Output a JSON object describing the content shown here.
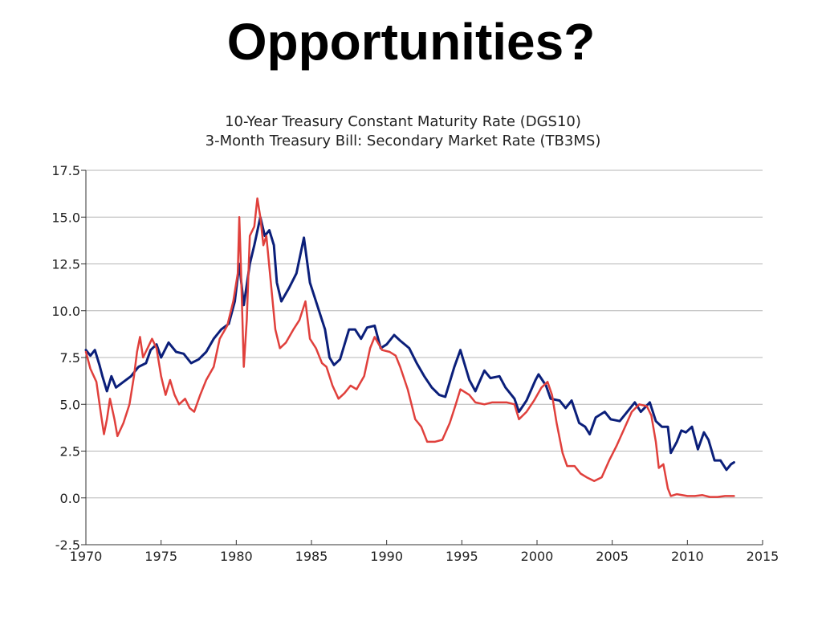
{
  "page_title": "Opportunities?",
  "chart_data": {
    "type": "line",
    "title_lines": [
      "10-Year Treasury Constant Maturity Rate (DGS10)",
      "3-Month Treasury Bill: Secondary Market Rate (TB3MS)"
    ],
    "xlabel": "",
    "ylabel": "",
    "xlim": [
      1970,
      2015
    ],
    "ylim": [
      -2.5,
      17.5
    ],
    "x_ticks": [
      1970,
      1975,
      1980,
      1985,
      1990,
      1995,
      2000,
      2005,
      2010,
      2015
    ],
    "x_tick_labels": [
      "1970",
      "1975",
      "1980",
      "1985",
      "1990",
      "1995",
      "2000",
      "2005",
      "2010",
      "2015"
    ],
    "y_ticks": [
      -2.5,
      0.0,
      2.5,
      5.0,
      7.5,
      10.0,
      12.5,
      15.0,
      17.5
    ],
    "y_tick_labels": [
      "-2.5",
      "0.0",
      "2.5",
      "5.0",
      "7.5",
      "10.0",
      "12.5",
      "15.0",
      "17.5"
    ],
    "grid": true,
    "legend": "none",
    "series": [
      {
        "color": "#0b1f7a",
        "points": [
          [
            1970.0,
            7.9
          ],
          [
            1970.3,
            7.6
          ],
          [
            1970.6,
            7.9
          ],
          [
            1970.9,
            7.1
          ],
          [
            1971.1,
            6.5
          ],
          [
            1971.4,
            5.7
          ],
          [
            1971.7,
            6.5
          ],
          [
            1972.0,
            5.9
          ],
          [
            1972.5,
            6.2
          ],
          [
            1973.0,
            6.5
          ],
          [
            1973.5,
            7.0
          ],
          [
            1974.0,
            7.2
          ],
          [
            1974.3,
            7.9
          ],
          [
            1974.7,
            8.2
          ],
          [
            1975.0,
            7.5
          ],
          [
            1975.5,
            8.3
          ],
          [
            1976.0,
            7.8
          ],
          [
            1976.5,
            7.7
          ],
          [
            1977.0,
            7.2
          ],
          [
            1977.5,
            7.4
          ],
          [
            1978.0,
            7.8
          ],
          [
            1978.5,
            8.5
          ],
          [
            1979.0,
            9.0
          ],
          [
            1979.5,
            9.3
          ],
          [
            1979.9,
            10.5
          ],
          [
            1980.2,
            12.5
          ],
          [
            1980.5,
            10.3
          ],
          [
            1980.9,
            12.5
          ],
          [
            1981.2,
            13.5
          ],
          [
            1981.6,
            15.0
          ],
          [
            1981.9,
            14.0
          ],
          [
            1982.2,
            14.3
          ],
          [
            1982.5,
            13.5
          ],
          [
            1982.7,
            11.5
          ],
          [
            1983.0,
            10.5
          ],
          [
            1983.5,
            11.2
          ],
          [
            1984.0,
            12.0
          ],
          [
            1984.5,
            13.9
          ],
          [
            1984.9,
            11.5
          ],
          [
            1985.5,
            10.0
          ],
          [
            1985.9,
            9.0
          ],
          [
            1986.2,
            7.5
          ],
          [
            1986.5,
            7.1
          ],
          [
            1986.9,
            7.4
          ],
          [
            1987.5,
            9.0
          ],
          [
            1987.9,
            9.0
          ],
          [
            1988.3,
            8.5
          ],
          [
            1988.7,
            9.1
          ],
          [
            1989.2,
            9.2
          ],
          [
            1989.6,
            8.0
          ],
          [
            1990.0,
            8.2
          ],
          [
            1990.5,
            8.7
          ],
          [
            1990.9,
            8.4
          ],
          [
            1991.5,
            8.0
          ],
          [
            1992.0,
            7.2
          ],
          [
            1992.5,
            6.5
          ],
          [
            1993.0,
            5.9
          ],
          [
            1993.5,
            5.5
          ],
          [
            1993.9,
            5.4
          ],
          [
            1994.5,
            7.0
          ],
          [
            1994.9,
            7.9
          ],
          [
            1995.5,
            6.3
          ],
          [
            1995.9,
            5.7
          ],
          [
            1996.5,
            6.8
          ],
          [
            1996.9,
            6.4
          ],
          [
            1997.5,
            6.5
          ],
          [
            1997.9,
            5.9
          ],
          [
            1998.5,
            5.3
          ],
          [
            1998.8,
            4.6
          ],
          [
            1999.3,
            5.2
          ],
          [
            1999.9,
            6.3
          ],
          [
            2000.1,
            6.6
          ],
          [
            2000.6,
            6.0
          ],
          [
            2000.9,
            5.3
          ],
          [
            2001.5,
            5.2
          ],
          [
            2001.9,
            4.8
          ],
          [
            2002.3,
            5.2
          ],
          [
            2002.8,
            4.0
          ],
          [
            2003.2,
            3.8
          ],
          [
            2003.5,
            3.4
          ],
          [
            2003.9,
            4.3
          ],
          [
            2004.5,
            4.6
          ],
          [
            2004.9,
            4.2
          ],
          [
            2005.5,
            4.1
          ],
          [
            2005.9,
            4.5
          ],
          [
            2006.5,
            5.1
          ],
          [
            2006.9,
            4.6
          ],
          [
            2007.5,
            5.1
          ],
          [
            2007.9,
            4.1
          ],
          [
            2008.3,
            3.8
          ],
          [
            2008.7,
            3.8
          ],
          [
            2008.9,
            2.4
          ],
          [
            2009.3,
            3.0
          ],
          [
            2009.6,
            3.6
          ],
          [
            2009.9,
            3.5
          ],
          [
            2010.3,
            3.8
          ],
          [
            2010.7,
            2.6
          ],
          [
            2011.1,
            3.5
          ],
          [
            2011.4,
            3.1
          ],
          [
            2011.8,
            2.0
          ],
          [
            2012.2,
            2.0
          ],
          [
            2012.6,
            1.5
          ],
          [
            2012.9,
            1.8
          ],
          [
            2013.1,
            1.9
          ]
        ]
      },
      {
        "color": "#e0403c",
        "points": [
          [
            1970.0,
            7.8
          ],
          [
            1970.3,
            6.9
          ],
          [
            1970.7,
            6.2
          ],
          [
            1971.0,
            4.5
          ],
          [
            1971.2,
            3.4
          ],
          [
            1971.4,
            4.2
          ],
          [
            1971.6,
            5.3
          ],
          [
            1971.9,
            4.2
          ],
          [
            1972.1,
            3.3
          ],
          [
            1972.5,
            4.0
          ],
          [
            1972.9,
            5.0
          ],
          [
            1973.2,
            6.5
          ],
          [
            1973.4,
            7.8
          ],
          [
            1973.6,
            8.6
          ],
          [
            1973.8,
            7.5
          ],
          [
            1974.1,
            8.0
          ],
          [
            1974.4,
            8.5
          ],
          [
            1974.7,
            8.0
          ],
          [
            1975.0,
            6.5
          ],
          [
            1975.3,
            5.5
          ],
          [
            1975.6,
            6.3
          ],
          [
            1975.9,
            5.5
          ],
          [
            1976.2,
            5.0
          ],
          [
            1976.6,
            5.3
          ],
          [
            1976.9,
            4.8
          ],
          [
            1977.2,
            4.6
          ],
          [
            1977.6,
            5.5
          ],
          [
            1978.0,
            6.3
          ],
          [
            1978.5,
            7.0
          ],
          [
            1978.9,
            8.5
          ],
          [
            1979.4,
            9.2
          ],
          [
            1979.8,
            10.5
          ],
          [
            1980.1,
            12.0
          ],
          [
            1980.2,
            15.0
          ],
          [
            1980.3,
            12.5
          ],
          [
            1980.5,
            7.0
          ],
          [
            1980.7,
            9.5
          ],
          [
            1980.9,
            14.0
          ],
          [
            1981.2,
            14.5
          ],
          [
            1981.4,
            16.0
          ],
          [
            1981.6,
            15.0
          ],
          [
            1981.8,
            13.5
          ],
          [
            1982.0,
            14.0
          ],
          [
            1982.3,
            11.5
          ],
          [
            1982.6,
            9.0
          ],
          [
            1982.9,
            8.0
          ],
          [
            1983.3,
            8.3
          ],
          [
            1983.8,
            9.0
          ],
          [
            1984.2,
            9.5
          ],
          [
            1984.6,
            10.5
          ],
          [
            1984.9,
            8.5
          ],
          [
            1985.3,
            8.0
          ],
          [
            1985.7,
            7.2
          ],
          [
            1986.0,
            7.0
          ],
          [
            1986.4,
            6.0
          ],
          [
            1986.8,
            5.3
          ],
          [
            1987.2,
            5.6
          ],
          [
            1987.6,
            6.0
          ],
          [
            1988.0,
            5.8
          ],
          [
            1988.5,
            6.5
          ],
          [
            1988.9,
            8.0
          ],
          [
            1989.2,
            8.6
          ],
          [
            1989.7,
            7.9
          ],
          [
            1990.2,
            7.8
          ],
          [
            1990.6,
            7.6
          ],
          [
            1990.9,
            7.0
          ],
          [
            1991.4,
            5.8
          ],
          [
            1991.9,
            4.2
          ],
          [
            1992.3,
            3.8
          ],
          [
            1992.7,
            3.0
          ],
          [
            1993.2,
            3.0
          ],
          [
            1993.7,
            3.1
          ],
          [
            1994.2,
            4.0
          ],
          [
            1994.6,
            5.0
          ],
          [
            1994.9,
            5.8
          ],
          [
            1995.5,
            5.5
          ],
          [
            1995.9,
            5.1
          ],
          [
            1996.5,
            5.0
          ],
          [
            1997.0,
            5.1
          ],
          [
            1997.5,
            5.1
          ],
          [
            1998.0,
            5.1
          ],
          [
            1998.5,
            5.0
          ],
          [
            1998.8,
            4.2
          ],
          [
            1999.3,
            4.6
          ],
          [
            1999.8,
            5.2
          ],
          [
            2000.3,
            5.9
          ],
          [
            2000.7,
            6.2
          ],
          [
            2001.0,
            5.5
          ],
          [
            2001.3,
            4.0
          ],
          [
            2001.7,
            2.4
          ],
          [
            2002.0,
            1.7
          ],
          [
            2002.5,
            1.7
          ],
          [
            2002.9,
            1.3
          ],
          [
            2003.3,
            1.1
          ],
          [
            2003.8,
            0.9
          ],
          [
            2004.3,
            1.1
          ],
          [
            2004.8,
            2.0
          ],
          [
            2005.3,
            2.8
          ],
          [
            2005.8,
            3.7
          ],
          [
            2006.3,
            4.6
          ],
          [
            2006.8,
            5.0
          ],
          [
            2007.3,
            4.9
          ],
          [
            2007.6,
            4.4
          ],
          [
            2007.9,
            3.0
          ],
          [
            2008.1,
            1.6
          ],
          [
            2008.4,
            1.8
          ],
          [
            2008.7,
            0.5
          ],
          [
            2008.9,
            0.1
          ],
          [
            2009.3,
            0.2
          ],
          [
            2010.0,
            0.1
          ],
          [
            2010.5,
            0.1
          ],
          [
            2011.0,
            0.15
          ],
          [
            2011.5,
            0.05
          ],
          [
            2012.0,
            0.05
          ],
          [
            2012.5,
            0.1
          ],
          [
            2013.0,
            0.1
          ],
          [
            2013.1,
            0.1
          ]
        ]
      }
    ]
  }
}
